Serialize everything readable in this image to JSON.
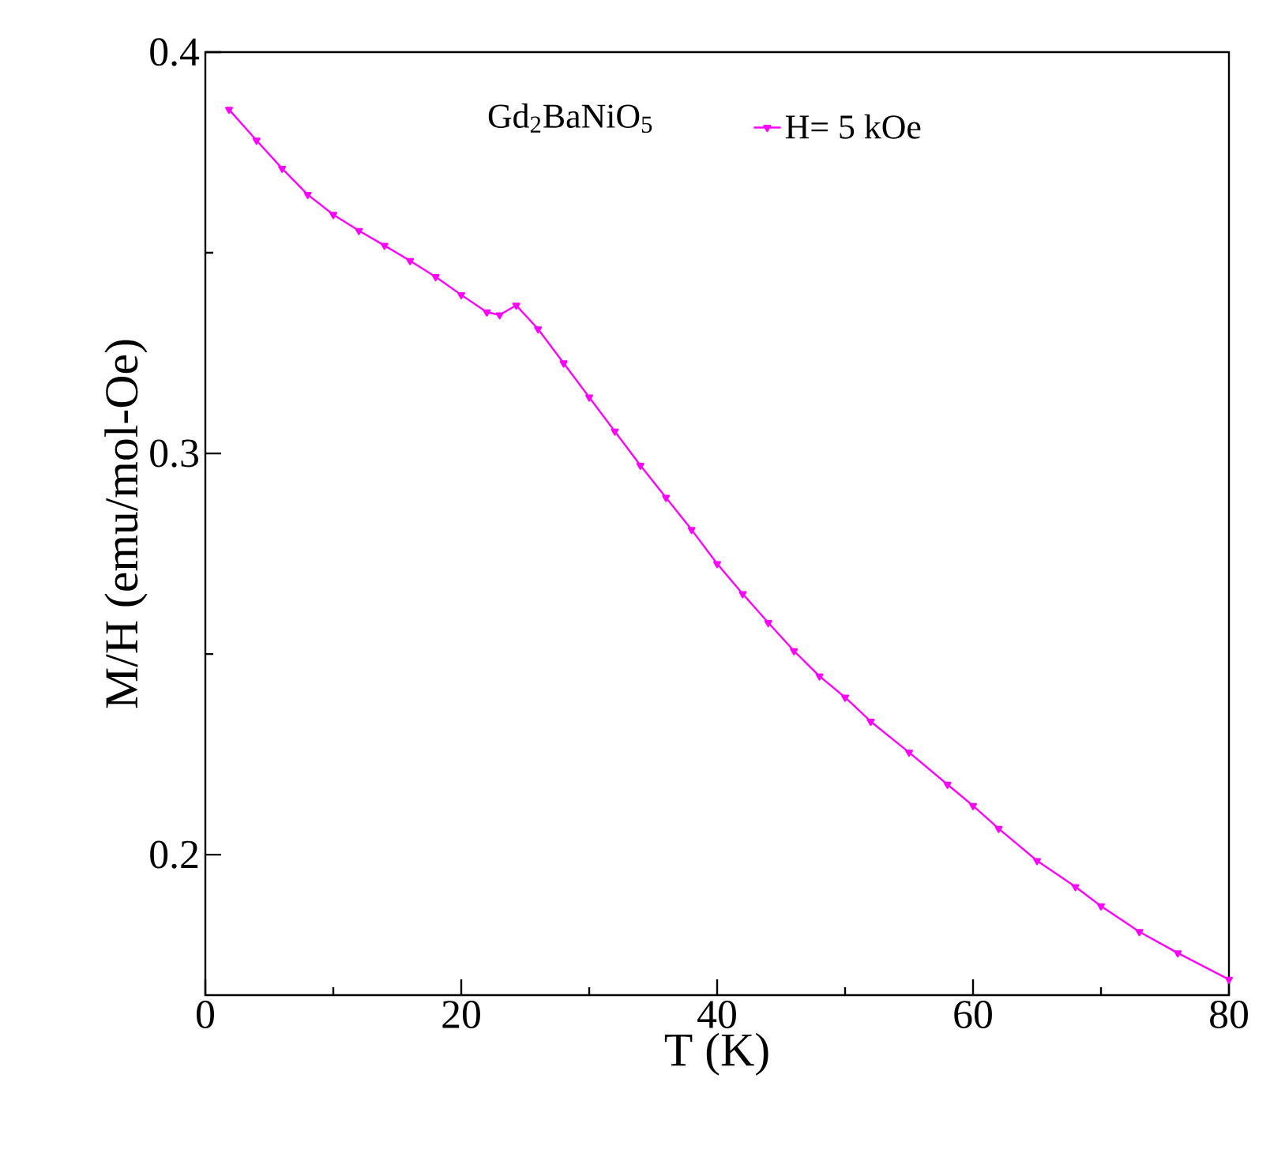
{
  "chart_data": {
    "type": "line",
    "title": "Gd$_{2}$BaNiO$_{5}$",
    "xlabel": "T (K)",
    "ylabel": "M/H (emu/mol-Oe)",
    "xlim": [
      0,
      80
    ],
    "ylim": [
      0.165,
      0.4
    ],
    "xticks": [
      0,
      20,
      40,
      60,
      80
    ],
    "yticks": [
      0.2,
      0.3,
      0.4
    ],
    "legend": "top right",
    "marker": "triangle",
    "grid": false,
    "series": [
      {
        "name": "H= 5 kOe",
        "color": "#ff00ff",
        "x": [
          1.85,
          4,
          6,
          8,
          10,
          12,
          14,
          16,
          18,
          20,
          22,
          23,
          24.3,
          26,
          28,
          30,
          32,
          34,
          36,
          38,
          40,
          42,
          44,
          46,
          48,
          50,
          52,
          55,
          58,
          60,
          62,
          65,
          68,
          70,
          73,
          76,
          80
        ],
        "values": [
          0.3857,
          0.378,
          0.371,
          0.3645,
          0.3595,
          0.3555,
          0.3518,
          0.348,
          0.344,
          0.3395,
          0.3352,
          0.3345,
          0.3369,
          0.331,
          0.3225,
          0.314,
          0.3055,
          0.297,
          0.289,
          0.281,
          0.2725,
          0.265,
          0.2578,
          0.2508,
          0.2445,
          0.2392,
          0.2332,
          0.2255,
          0.2175,
          0.2122,
          0.2065,
          0.1985,
          0.192,
          0.1872,
          0.1808,
          0.1755,
          0.1689
        ]
      }
    ]
  }
}
